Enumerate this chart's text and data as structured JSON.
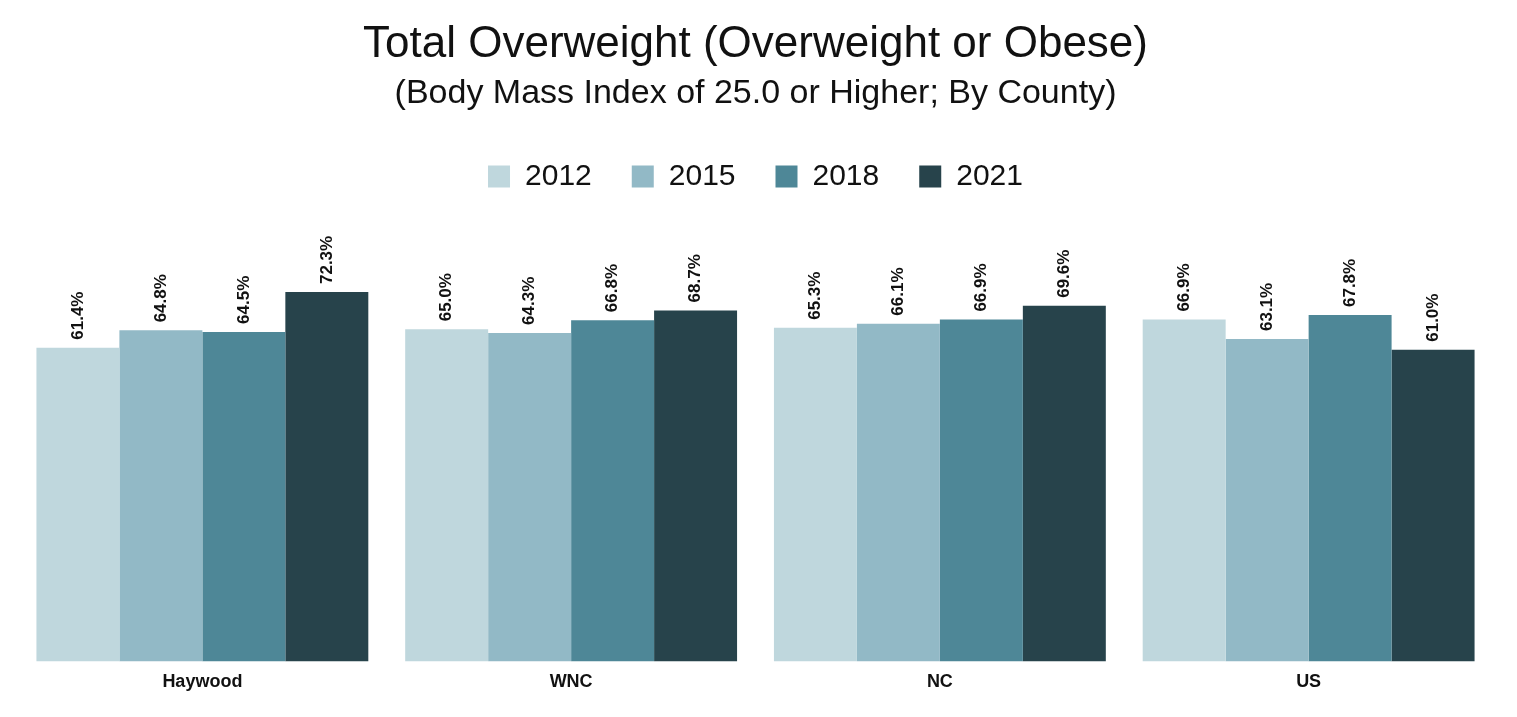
{
  "chart_data": {
    "type": "bar",
    "title": "Total Overweight (Overweight or Obese)",
    "subtitle": "(Body Mass Index of 25.0 or Higher; By County)",
    "categories": [
      "Haywood",
      "WNC",
      "NC",
      "US"
    ],
    "series": [
      {
        "name": "2012",
        "color": "#bfd7dd",
        "values": [
          61.4,
          65.0,
          65.3,
          66.9
        ],
        "value_labels": [
          "61.4%",
          "65.0%",
          "65.3%",
          "66.9%"
        ]
      },
      {
        "name": "2015",
        "color": "#92b9c6",
        "values": [
          64.8,
          64.3,
          66.1,
          63.1
        ],
        "value_labels": [
          "64.8%",
          "64.3%",
          "66.1%",
          "63.1%"
        ]
      },
      {
        "name": "2018",
        "color": "#4e8797",
        "values": [
          64.5,
          66.8,
          66.9,
          67.8
        ],
        "value_labels": [
          "64.5%",
          "66.8%",
          "66.9%",
          "67.8%"
        ]
      },
      {
        "name": "2021",
        "color": "#27434b",
        "values": [
          72.3,
          68.7,
          69.6,
          61.0
        ],
        "value_labels": [
          "72.3%",
          "68.7%",
          "69.6%",
          "61.0%"
        ]
      }
    ],
    "grid": false,
    "legend": "top"
  }
}
